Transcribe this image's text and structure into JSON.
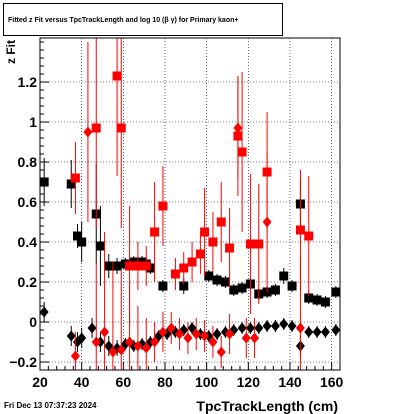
{
  "chart_data": {
    "type": "scatter",
    "title": "Fitted  z Fit  versus TpcTrackLength and log 10 (β γ) for Primary kaon+",
    "xlabel": "TpcTrackLength (cm)",
    "ylabel": "z Fit",
    "xlim": [
      20,
      164
    ],
    "ylim": [
      -0.24,
      1.42
    ],
    "xticks": [
      "20",
      "40",
      "60",
      "80",
      "100",
      "120",
      "140",
      "160"
    ],
    "yticks": [
      "−0.2",
      "0",
      "0.2",
      "0.4",
      "0.6",
      "0.8",
      "1",
      "1.2"
    ],
    "ytick_values": [
      -0.2,
      0,
      0.2,
      0.4,
      0.6,
      0.8,
      1.0,
      1.2
    ],
    "xtick_values": [
      20,
      40,
      60,
      80,
      100,
      120,
      140,
      160
    ],
    "grid": true,
    "series": [
      {
        "color": "#000000",
        "marker": "square",
        "points": [
          [
            22,
            0.7,
            0.12
          ],
          [
            35,
            0.69,
            0.12
          ],
          [
            38,
            0.43,
            0.06
          ],
          [
            40,
            0.4,
            0.1
          ],
          [
            47,
            0.54,
            0.25
          ],
          [
            49,
            0.38,
            0.2
          ],
          [
            53,
            0.28,
            0.06
          ],
          [
            57,
            0.28,
            0.04
          ],
          [
            61,
            0.29,
            0.03
          ],
          [
            65,
            0.3,
            0.03
          ],
          [
            69,
            0.3,
            0.03
          ],
          [
            71,
            0.29,
            0.03
          ],
          [
            73,
            0.27,
            0.03
          ],
          [
            79,
            0.18,
            0.03
          ],
          [
            89,
            0.18,
            0.04
          ],
          [
            101,
            0.23,
            0.03
          ],
          [
            105,
            0.21,
            0.03
          ],
          [
            109,
            0.2,
            0.03
          ],
          [
            113,
            0.16,
            0.03
          ],
          [
            117,
            0.17,
            0.03
          ],
          [
            121,
            0.19,
            0.03
          ],
          [
            125,
            0.14,
            0.03
          ],
          [
            129,
            0.15,
            0.03
          ],
          [
            133,
            0.16,
            0.03
          ],
          [
            137,
            0.23,
            0.04
          ],
          [
            141,
            0.18,
            0.03
          ],
          [
            145,
            0.59,
            0.12
          ],
          [
            149,
            0.12,
            0.03
          ],
          [
            153,
            0.11,
            0.03
          ],
          [
            157,
            0.1,
            0.03
          ],
          [
            162,
            0.15,
            0.03
          ]
        ]
      },
      {
        "color": "#ff0000",
        "marker": "square",
        "points": [
          [
            37,
            0.72,
            0.18
          ],
          [
            47,
            0.97,
            0.5
          ],
          [
            57,
            1.23,
            0.5
          ],
          [
            59,
            0.97,
            0.5
          ],
          [
            63,
            0.28,
            0.3
          ],
          [
            67,
            0.28,
            0.12
          ],
          [
            71,
            0.28,
            0.1
          ],
          [
            75,
            0.45,
            0.25
          ],
          [
            79,
            0.58,
            0.2
          ],
          [
            85,
            0.24,
            0.08
          ],
          [
            89,
            0.27,
            0.08
          ],
          [
            93,
            0.3,
            0.1
          ],
          [
            97,
            0.34,
            0.1
          ],
          [
            99,
            0.45,
            0.22
          ],
          [
            103,
            0.4,
            0.15
          ],
          [
            107,
            0.5,
            0.2
          ],
          [
            111,
            0.37,
            0.2
          ],
          [
            115,
            0.93,
            0.3
          ],
          [
            117,
            0.85,
            0.4
          ],
          [
            121,
            0.39,
            0.35
          ],
          [
            125,
            0.39,
            0.3
          ],
          [
            129,
            0.75,
            0.3
          ],
          [
            145,
            0.46,
            0.3
          ],
          [
            149,
            0.43,
            0.3
          ]
        ]
      },
      {
        "color": "#000000",
        "marker": "diamond",
        "points": [
          [
            22,
            0.05,
            0.05
          ],
          [
            35,
            -0.07,
            0.05
          ],
          [
            38,
            -0.1,
            0.05
          ],
          [
            40,
            -0.08,
            0.05
          ],
          [
            45,
            -0.03,
            0.05
          ],
          [
            49,
            -0.1,
            0.05
          ],
          [
            53,
            -0.12,
            0.05
          ],
          [
            57,
            -0.13,
            0.04
          ],
          [
            61,
            -0.11,
            0.03
          ],
          [
            65,
            -0.12,
            0.03
          ],
          [
            69,
            -0.11,
            0.03
          ],
          [
            73,
            -0.1,
            0.03
          ],
          [
            77,
            -0.07,
            0.03
          ],
          [
            81,
            -0.06,
            0.03
          ],
          [
            85,
            -0.05,
            0.03
          ],
          [
            89,
            -0.04,
            0.03
          ],
          [
            93,
            -0.03,
            0.03
          ],
          [
            97,
            -0.06,
            0.03
          ],
          [
            101,
            -0.07,
            0.03
          ],
          [
            105,
            -0.06,
            0.03
          ],
          [
            109,
            -0.05,
            0.03
          ],
          [
            113,
            -0.04,
            0.03
          ],
          [
            117,
            -0.03,
            0.03
          ],
          [
            121,
            -0.03,
            0.03
          ],
          [
            125,
            -0.03,
            0.03
          ],
          [
            129,
            -0.02,
            0.03
          ],
          [
            133,
            -0.02,
            0.03
          ],
          [
            137,
            -0.01,
            0.03
          ],
          [
            141,
            -0.02,
            0.03
          ],
          [
            145,
            -0.12,
            0.05
          ],
          [
            149,
            -0.05,
            0.03
          ],
          [
            153,
            -0.05,
            0.03
          ],
          [
            157,
            -0.05,
            0.03
          ],
          [
            162,
            -0.04,
            0.03
          ]
        ]
      },
      {
        "color": "#ff0000",
        "marker": "diamond",
        "points": [
          [
            37,
            -0.17,
            0.12
          ],
          [
            43,
            0.95,
            0.45
          ],
          [
            47,
            -0.1,
            0.4
          ],
          [
            51,
            -0.05,
            0.5
          ],
          [
            55,
            -0.15,
            0.45
          ],
          [
            59,
            -0.14,
            0.4
          ],
          [
            63,
            -0.1,
            0.3
          ],
          [
            67,
            -0.12,
            0.2
          ],
          [
            71,
            -0.13,
            0.15
          ],
          [
            75,
            -0.1,
            0.1
          ],
          [
            79,
            -0.05,
            0.1
          ],
          [
            83,
            -0.03,
            0.08
          ],
          [
            87,
            -0.06,
            0.08
          ],
          [
            91,
            -0.08,
            0.08
          ],
          [
            95,
            -0.06,
            0.08
          ],
          [
            99,
            -0.07,
            0.08
          ],
          [
            103,
            -0.1,
            0.08
          ],
          [
            107,
            -0.15,
            0.08
          ],
          [
            111,
            -0.06,
            0.1
          ],
          [
            115,
            0.97,
            0.25
          ],
          [
            119,
            -0.08,
            0.1
          ],
          [
            123,
            -0.08,
            0.1
          ],
          [
            129,
            0.5,
            0.35
          ],
          [
            145,
            -0.03,
            0.35
          ]
        ]
      }
    ]
  },
  "footer": {
    "timestamp": "Fri Dec 13 07:37:23 2024"
  }
}
